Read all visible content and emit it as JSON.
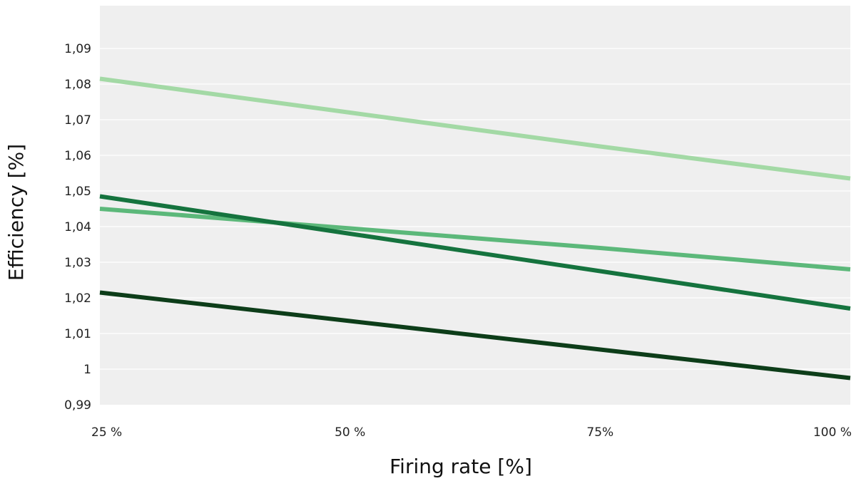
{
  "chart_data": {
    "type": "line",
    "title": "",
    "xlabel": "Firing rate [%]",
    "ylabel": "Efficiency [%]",
    "x_categories": [
      "25 %",
      "50 %",
      "75%",
      "100 %"
    ],
    "x": [
      25,
      50,
      75,
      100
    ],
    "xlim": [
      25,
      100
    ],
    "ylim": [
      0.99,
      1.102
    ],
    "y_ticks": [
      {
        "value": 0.99,
        "label": "0,99"
      },
      {
        "value": 1.0,
        "label": "1"
      },
      {
        "value": 1.01,
        "label": "1,01"
      },
      {
        "value": 1.02,
        "label": "1,02"
      },
      {
        "value": 1.03,
        "label": "1,03"
      },
      {
        "value": 1.04,
        "label": "1,04"
      },
      {
        "value": 1.05,
        "label": "1,05"
      },
      {
        "value": 1.06,
        "label": "1,06"
      },
      {
        "value": 1.07,
        "label": "1,07"
      },
      {
        "value": 1.08,
        "label": "1,08"
      },
      {
        "value": 1.09,
        "label": "1,09"
      }
    ],
    "grid": true,
    "legend": "none",
    "plot_background": "#efefef",
    "series": [
      {
        "color": "#a3d9a5",
        "values": [
          1.0815,
          1.072,
          1.0625,
          1.0535
        ]
      },
      {
        "color": "#5cb87a",
        "values": [
          1.045,
          1.0395,
          1.034,
          1.028
        ]
      },
      {
        "color": "#15733e",
        "values": [
          1.0485,
          1.038,
          1.0275,
          1.017
        ]
      },
      {
        "color": "#0d3d19",
        "values": [
          1.0215,
          1.0135,
          1.0055,
          0.9975
        ]
      }
    ]
  }
}
